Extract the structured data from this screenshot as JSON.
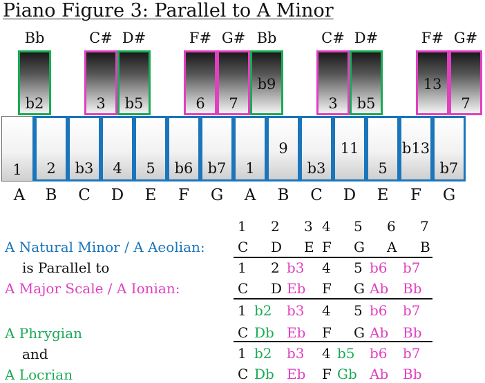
{
  "title": "Piano Figure 3: Parallel to A Minor",
  "colors": {
    "blue": "#1a75bb",
    "magenta": "#e040c0",
    "green": "#1aaa55",
    "black": "#111111"
  },
  "white_keys": [
    {
      "label": "1",
      "color": "blue"
    },
    {
      "label": "2",
      "color": "blue"
    },
    {
      "label": "b3",
      "color": "blue"
    },
    {
      "label": "4",
      "color": "blue"
    },
    {
      "label": "5",
      "color": "blue"
    },
    {
      "label": "b6",
      "color": "blue"
    },
    {
      "label": "b7",
      "color": "blue"
    },
    {
      "label": "1",
      "color": "blue"
    },
    {
      "label": "9",
      "color": "blue"
    },
    {
      "label": "b3",
      "color": "blue"
    },
    {
      "label": "11",
      "color": "blue"
    },
    {
      "label": "5",
      "color": "blue"
    },
    {
      "label": "b13",
      "color": "blue"
    },
    {
      "label": "b7",
      "color": "blue"
    }
  ],
  "black_keys": [
    {
      "name": "Bb",
      "label": "b2",
      "border": "green"
    },
    {
      "name": "C#",
      "label": "3",
      "border": "magenta"
    },
    {
      "name": "D#",
      "label": "b5",
      "border": "green"
    },
    {
      "name": "F#",
      "label": "6",
      "border": "magenta"
    },
    {
      "name": "G#",
      "label": "7",
      "border": "magenta"
    },
    {
      "name": "Bb",
      "label": "b9",
      "border": "green"
    },
    {
      "name": "C#",
      "label": "3",
      "border": "magenta"
    },
    {
      "name": "D#",
      "label": "b5",
      "border": "green"
    },
    {
      "name": "F#",
      "label": "13",
      "border": "magenta"
    },
    {
      "name": "G#",
      "label": "7",
      "border": "magenta"
    }
  ],
  "note_names": [
    "A",
    "B",
    "C",
    "D",
    "E",
    "F",
    "G",
    "A",
    "B",
    "C",
    "D",
    "E",
    "F",
    "G"
  ],
  "left_labels": {
    "natural_minor": "A Natural Minor / A Aeolian:",
    "is_parallel": "is Parallel to",
    "major": "A Major Scale / A Ionian:",
    "phrygian": "A Phrygian",
    "and": "and",
    "locrian": "A Locrian"
  },
  "scale_table": {
    "header": [
      "1",
      "2",
      "3",
      "4",
      "5",
      "6",
      "7"
    ],
    "rows": [
      {
        "name": "minor-notes",
        "cells": [
          [
            "C",
            "black"
          ],
          [
            "D",
            "black"
          ],
          [
            "E",
            "black"
          ],
          [
            "F",
            "black"
          ],
          [
            "G",
            "black"
          ],
          [
            "A",
            "black"
          ],
          [
            "B",
            "black"
          ]
        ]
      },
      {
        "name": "major-degrees",
        "cells": [
          [
            "1",
            "black"
          ],
          [
            "2",
            "black"
          ],
          [
            "b3",
            "magenta"
          ],
          [
            "4",
            "black"
          ],
          [
            "5",
            "black"
          ],
          [
            "b6",
            "magenta"
          ],
          [
            "b7",
            "magenta"
          ]
        ]
      },
      {
        "name": "major-notes",
        "cells": [
          [
            "C",
            "black"
          ],
          [
            "D",
            "black"
          ],
          [
            "Eb",
            "magenta"
          ],
          [
            "F",
            "black"
          ],
          [
            "G",
            "black"
          ],
          [
            "Ab",
            "magenta"
          ],
          [
            "Bb",
            "magenta"
          ]
        ]
      },
      {
        "name": "phrygian-degrees",
        "cells": [
          [
            "1",
            "black"
          ],
          [
            "b2",
            "green"
          ],
          [
            "b3",
            "magenta"
          ],
          [
            "4",
            "black"
          ],
          [
            "5",
            "black"
          ],
          [
            "b6",
            "magenta"
          ],
          [
            "b7",
            "magenta"
          ]
        ]
      },
      {
        "name": "phrygian-notes",
        "cells": [
          [
            "C",
            "black"
          ],
          [
            "Db",
            "green"
          ],
          [
            "Eb",
            "magenta"
          ],
          [
            "F",
            "black"
          ],
          [
            "G",
            "black"
          ],
          [
            "Ab",
            "magenta"
          ],
          [
            "Bb",
            "magenta"
          ]
        ]
      },
      {
        "name": "locrian-degrees",
        "cells": [
          [
            "1",
            "black"
          ],
          [
            "b2",
            "green"
          ],
          [
            "b3",
            "magenta"
          ],
          [
            "4",
            "black"
          ],
          [
            "b5",
            "green"
          ],
          [
            "b6",
            "magenta"
          ],
          [
            "b7",
            "magenta"
          ]
        ]
      },
      {
        "name": "locrian-notes",
        "cells": [
          [
            "C",
            "black"
          ],
          [
            "Db",
            "green"
          ],
          [
            "Eb",
            "magenta"
          ],
          [
            "F",
            "black"
          ],
          [
            "Gb",
            "green"
          ],
          [
            "Ab",
            "magenta"
          ],
          [
            "Bb",
            "magenta"
          ]
        ]
      }
    ]
  }
}
